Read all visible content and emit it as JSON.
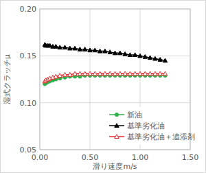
{
  "chart_data": {
    "type": "line",
    "x_label": "滑り速度m/s",
    "y_label": "湿式クラッチμ",
    "x": [
      0.05,
      0.06,
      0.08,
      0.1,
      0.13,
      0.16,
      0.2,
      0.25,
      0.3,
      0.35,
      0.4,
      0.45,
      0.5,
      0.55,
      0.6,
      0.65,
      0.7,
      0.75,
      0.8,
      0.85,
      0.9,
      0.95,
      1.0,
      1.05,
      1.1,
      1.15,
      1.2,
      1.25
    ],
    "series": [
      {
        "name": "新油",
        "color": "#2db34a",
        "marker": "circle",
        "values": [
          0.12,
          0.121,
          0.122,
          0.123,
          0.124,
          0.125,
          0.126,
          0.127,
          0.128,
          0.128,
          0.128,
          0.129,
          0.129,
          0.129,
          0.129,
          0.129,
          0.129,
          0.129,
          0.129,
          0.129,
          0.129,
          0.129,
          0.129,
          0.129,
          0.129,
          0.129,
          0.129,
          0.129
        ]
      },
      {
        "name": "基準劣化油",
        "color": "#000000",
        "marker": "triangle",
        "values": [
          0.162,
          0.161,
          0.161,
          0.161,
          0.16,
          0.16,
          0.159,
          0.159,
          0.158,
          0.158,
          0.157,
          0.157,
          0.156,
          0.156,
          0.155,
          0.155,
          0.154,
          0.153,
          0.153,
          0.152,
          0.151,
          0.151,
          0.15,
          0.149,
          0.148,
          0.147,
          0.146,
          0.145
        ]
      },
      {
        "name": "基準劣化油＋追添剤",
        "color": "#e8262a",
        "marker": "triangle-open",
        "values": [
          0.123,
          0.124,
          0.125,
          0.126,
          0.127,
          0.128,
          0.129,
          0.13,
          0.13,
          0.131,
          0.131,
          0.131,
          0.131,
          0.131,
          0.131,
          0.131,
          0.131,
          0.131,
          0.131,
          0.131,
          0.131,
          0.131,
          0.131,
          0.131,
          0.131,
          0.131,
          0.131,
          0.131
        ]
      }
    ],
    "xlim": [
      0.0,
      1.5
    ],
    "xticks": [
      {
        "value": 0.0,
        "label": "0.00"
      },
      {
        "value": 0.5,
        "label": "0.50"
      },
      {
        "value": 1.0,
        "label": "1.00"
      },
      {
        "value": 1.5,
        "label": "1.50"
      }
    ],
    "ylim": [
      0.05,
      0.2
    ],
    "yticks": [
      {
        "value": 0.05,
        "label": "0.05"
      },
      {
        "value": 0.1,
        "label": "0.10"
      },
      {
        "value": 0.15,
        "label": "0.15"
      },
      {
        "value": 0.2,
        "label": "0.20"
      }
    ],
    "grid": true,
    "legend": "lower right"
  }
}
